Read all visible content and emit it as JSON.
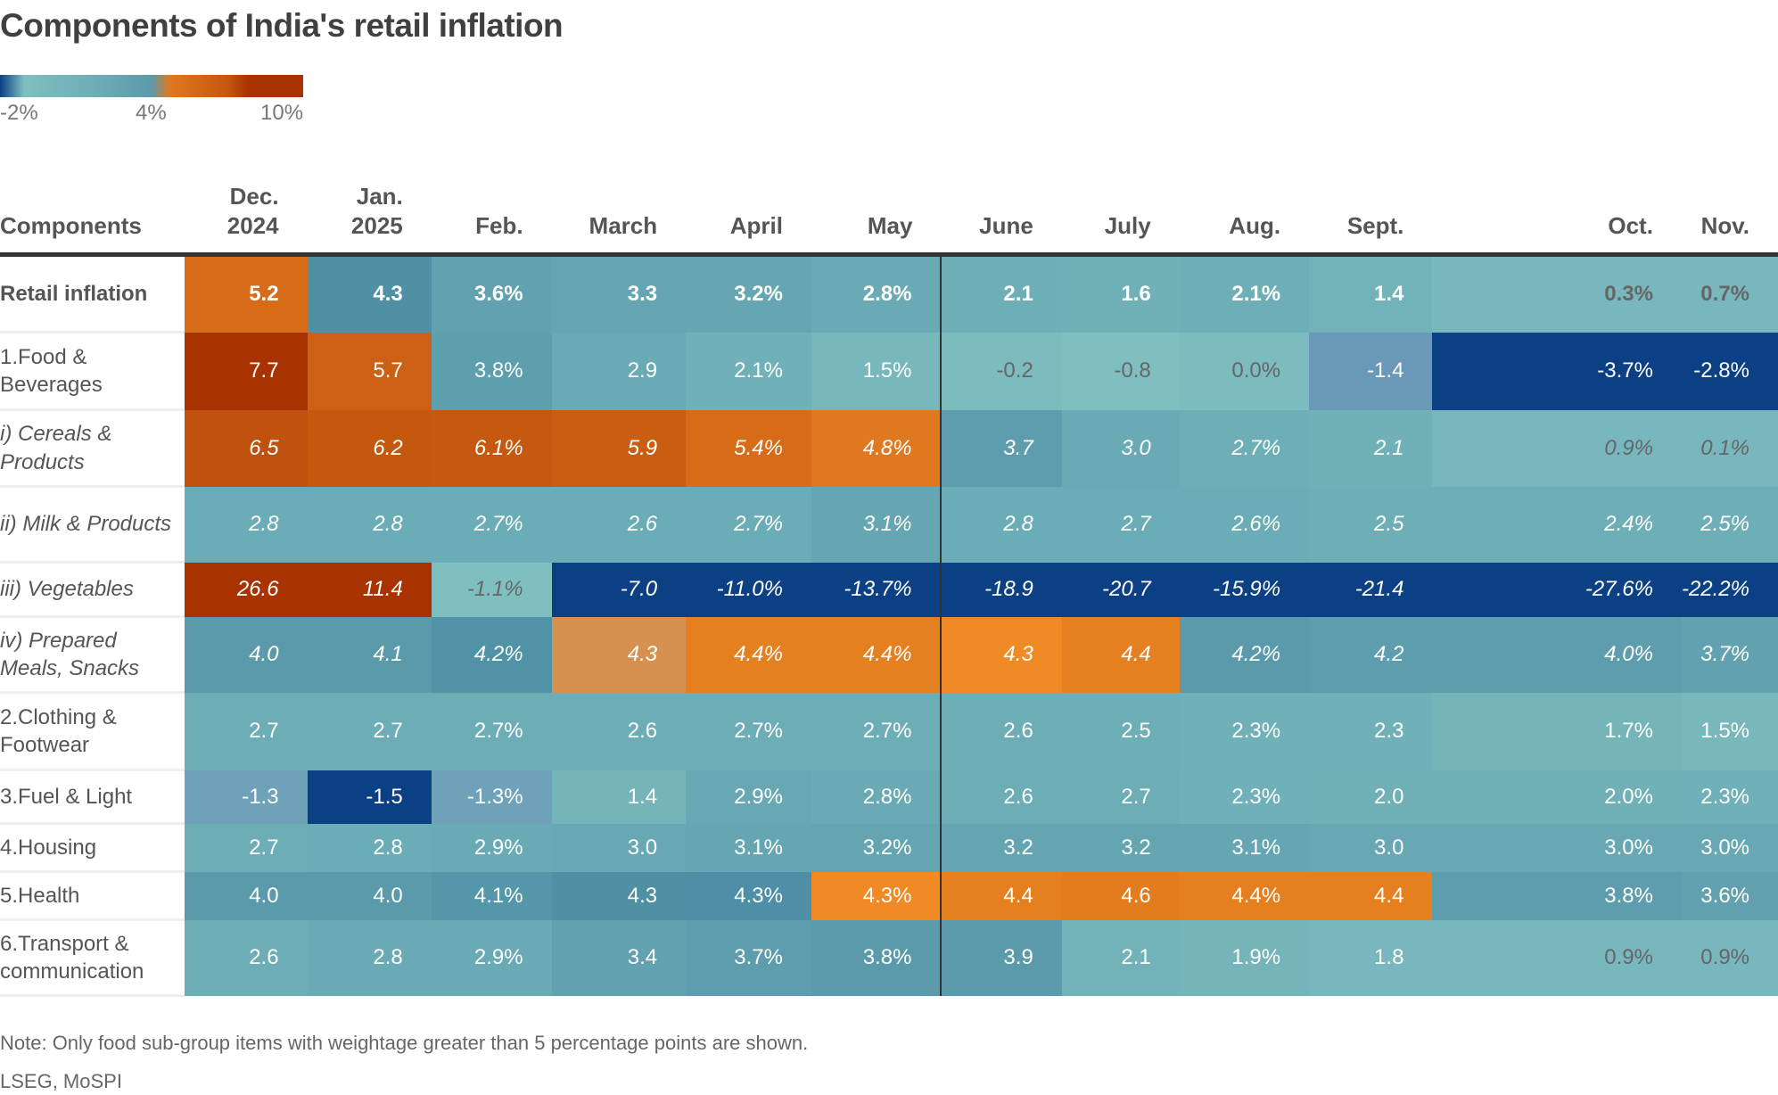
{
  "chart_data": {
    "type": "heatmap",
    "title": "Components of India's retail inflation",
    "legend": {
      "ticks": [
        "-2%",
        "4%",
        "10%"
      ],
      "colors": [
        "#0b4184",
        "#7fbfbf",
        "#5a9aaa",
        "#e07820",
        "#a83300"
      ]
    },
    "row_header": "Components",
    "columns": [
      [
        "Dec.",
        "2024"
      ],
      [
        "Jan.",
        "2025"
      ],
      [
        "Feb."
      ],
      [
        "March"
      ],
      [
        "April"
      ],
      [
        "May"
      ],
      [
        "June"
      ],
      [
        "July"
      ],
      [
        "Aug."
      ],
      [
        "Sept."
      ],
      [
        "Oct."
      ],
      [
        "Nov."
      ]
    ],
    "rows": [
      {
        "label": "Retail inflation",
        "style": "bold",
        "values": [
          "5.2",
          "4.3",
          "3.6%",
          "3.3",
          "3.2%",
          "2.8%",
          "2.1",
          "1.6",
          "2.1%",
          "1.4",
          "0.3%",
          "0.7%"
        ],
        "colors": [
          "#d76c18",
          "#5090a5",
          "#62a2b0",
          "#65a5b2",
          "#66a6b2",
          "#6aaab5",
          "#6eaeb7",
          "#70b1b8",
          "#6eaeb7",
          "#72b3ba",
          "#77b7bd",
          "#77b7bd"
        ]
      },
      {
        "label": "1.Food & Beverages",
        "style": "normal",
        "values": [
          "7.7",
          "5.7",
          "3.8%",
          "2.9",
          "2.1%",
          "1.5%",
          "-0.2",
          "-0.8",
          "0.0%",
          "-1.4",
          "-3.7%",
          "-2.8%"
        ],
        "colors": [
          "#a83300",
          "#cc6015",
          "#5e9fae",
          "#6aaab5",
          "#70b0b8",
          "#78b7bc",
          "#7cbbbe",
          "#7fbfbf",
          "#7cbbbe",
          "#6a98b8",
          "#0b4184",
          "#0b4184"
        ]
      },
      {
        "label": "i) Cereals & Products",
        "style": "italic",
        "values": [
          "6.5",
          "6.2",
          "6.1%",
          "5.9",
          "5.4%",
          "4.8%",
          "3.7",
          "3.0",
          "2.7%",
          "2.1",
          "0.9%",
          "0.1%"
        ],
        "colors": [
          "#bf520f",
          "#c4580f",
          "#c5590f",
          "#c95d12",
          "#d76b18",
          "#e07820",
          "#5e9dad",
          "#6aaab5",
          "#6eaeb7",
          "#70b1b8",
          "#77b7bd",
          "#77b7bd"
        ]
      },
      {
        "label": "ii) Milk & Products",
        "style": "italic",
        "values": [
          "2.8",
          "2.8",
          "2.7%",
          "2.6",
          "2.7%",
          "3.1%",
          "2.8",
          "2.7",
          "2.6%",
          "2.5",
          "2.4%",
          "2.5%"
        ],
        "colors": [
          "#6badb6",
          "#6badb6",
          "#6badb6",
          "#6badb6",
          "#6badb6",
          "#66a6b2",
          "#6badb6",
          "#6badb6",
          "#6badb6",
          "#6eaeb7",
          "#6eaeb7",
          "#6eaeb7"
        ]
      },
      {
        "label": "iii) Vegetables",
        "style": "italic",
        "values": [
          "26.6",
          "11.4",
          "-1.1%",
          "-7.0",
          "-11.0%",
          "-13.7%",
          "-18.9",
          "-20.7",
          "-15.9%",
          "-21.4",
          "-27.6%",
          "-22.2%"
        ],
        "colors": [
          "#a83300",
          "#a83300",
          "#7fbfbf",
          "#0b4184",
          "#0b4184",
          "#0b4184",
          "#0b4184",
          "#0b4184",
          "#0b4184",
          "#0b4184",
          "#0b4184",
          "#0b4184"
        ]
      },
      {
        "label": "iv) Prepared Meals, Snacks",
        "style": "italic",
        "values": [
          "4.0",
          "4.1",
          "4.2%",
          "4.3",
          "4.4%",
          "4.4%",
          "4.3",
          "4.4",
          "4.2%",
          "4.2",
          "4.0%",
          "3.7%"
        ],
        "colors": [
          "#5a9aaa",
          "#5a9aaa",
          "#5193a6",
          "#d6904f",
          "#e58020",
          "#e58020",
          "#f08a25",
          "#e58020",
          "#5a9aaa",
          "#5d9dad",
          "#5d9dad",
          "#62a2b0"
        ]
      },
      {
        "label": "2.Clothing & Footwear",
        "style": "normal",
        "values": [
          "2.7",
          "2.7",
          "2.7%",
          "2.6",
          "2.7%",
          "2.7%",
          "2.6",
          "2.5",
          "2.3%",
          "2.3",
          "1.7%",
          "1.5%"
        ],
        "colors": [
          "#6dadb6",
          "#6dadb6",
          "#6dadb6",
          "#6dadb6",
          "#6dadb6",
          "#6dadb6",
          "#6dadb6",
          "#6eaeb7",
          "#70b0b8",
          "#70b0b8",
          "#75b5ba",
          "#78b7bc"
        ]
      },
      {
        "label": "3.Fuel & Light",
        "style": "normal",
        "values": [
          "-1.3",
          "-1.5",
          "-1.3%",
          "1.4",
          "2.9%",
          "2.8%",
          "2.6",
          "2.7",
          "2.3%",
          "2.0",
          "2.0%",
          "2.3%"
        ],
        "colors": [
          "#6fa2b8",
          "#0b4184",
          "#6fa2b8",
          "#75b5ba",
          "#68a8b4",
          "#6aaab5",
          "#6dadb6",
          "#6dadb6",
          "#70b0b8",
          "#70b1b8",
          "#70b1b8",
          "#70b0b8"
        ]
      },
      {
        "label": "4.Housing",
        "style": "normal",
        "values": [
          "2.7",
          "2.8",
          "2.9%",
          "3.0",
          "3.1%",
          "3.2%",
          "3.2",
          "3.2",
          "3.1%",
          "3.0",
          "3.0%",
          "3.0%"
        ],
        "colors": [
          "#6dadb6",
          "#6badb6",
          "#6aaab5",
          "#68a8b4",
          "#66a6b2",
          "#65a5b2",
          "#65a5b2",
          "#65a5b2",
          "#66a6b2",
          "#68a8b4",
          "#68a8b4",
          "#68a8b4"
        ]
      },
      {
        "label": "5.Health",
        "style": "normal",
        "values": [
          "4.0",
          "4.0",
          "4.1%",
          "4.3",
          "4.3%",
          "4.3%",
          "4.4",
          "4.6",
          "4.4%",
          "4.4",
          "3.8%",
          "3.6%"
        ],
        "colors": [
          "#5a9aaa",
          "#5a9aaa",
          "#5596a8",
          "#5090a5",
          "#4e8ea6",
          "#f08a25",
          "#e58020",
          "#e27c1e",
          "#e58020",
          "#e58020",
          "#5e9dad",
          "#62a2b0"
        ]
      },
      {
        "label": "6.Transport & communication",
        "style": "normal",
        "values": [
          "2.6",
          "2.8",
          "2.9%",
          "3.4",
          "3.7%",
          "3.8%",
          "3.9",
          "2.1",
          "1.9%",
          "1.8",
          "0.9%",
          "0.9%"
        ],
        "colors": [
          "#6dadb6",
          "#6aaab5",
          "#6aaab5",
          "#62a2b0",
          "#5e9dad",
          "#5a9aaa",
          "#5a9aaa",
          "#72b3ba",
          "#75b5ba",
          "#77b7bd",
          "#77b7bd",
          "#77b7bd"
        ]
      }
    ]
  },
  "note": "Note: Only food sub-group items with weightage greater than 5 percentage points are shown.",
  "source": "LSEG, MoSPI"
}
